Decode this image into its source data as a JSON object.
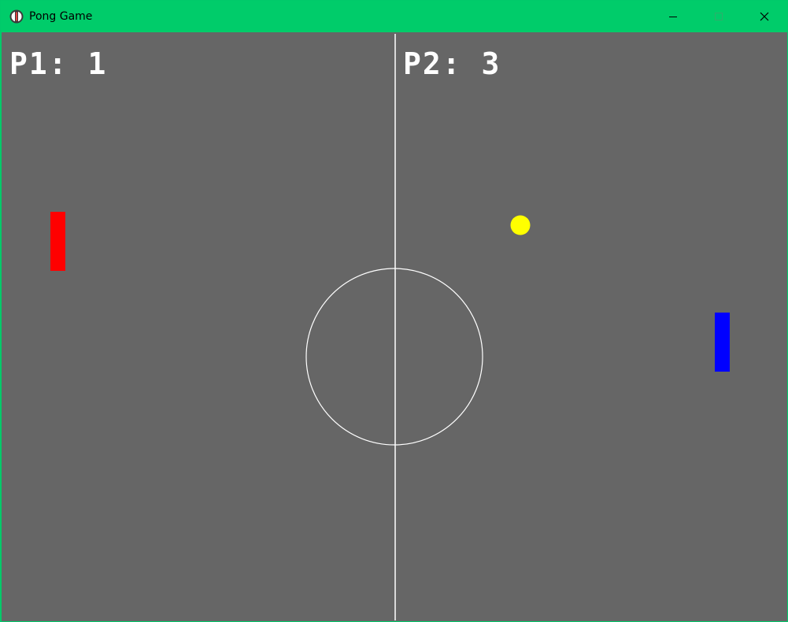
{
  "window": {
    "title": "Pong Game",
    "icon": "pong-app-icon",
    "controls": [
      "minimize-icon",
      "maximize-icon",
      "close-icon"
    ]
  },
  "game": {
    "background_color": "#666666",
    "line_color": "#ffffff",
    "player1": {
      "label": "P1",
      "separator": ": ",
      "score": "1",
      "paddle_color": "#ff0000"
    },
    "player2": {
      "label": "P2",
      "separator": ": ",
      "score": "3",
      "paddle_color": "#0000ff"
    },
    "ball": {
      "color": "#ffff00"
    }
  }
}
